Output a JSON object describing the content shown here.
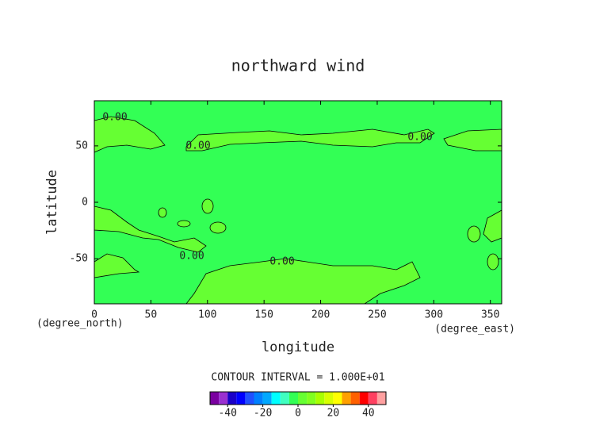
{
  "chart_data": {
    "type": "contour",
    "title": "northward wind",
    "xlabel": "longitude",
    "ylabel": "latitude",
    "x_unit": "(degree_east)",
    "y_unit": "(degree_north)",
    "xlim": [
      0,
      360
    ],
    "ylim": [
      -90,
      90
    ],
    "xticks": [
      0,
      50,
      100,
      150,
      200,
      250,
      300,
      350
    ],
    "yticks": [
      -50,
      0,
      50
    ],
    "contour_labels": [
      "0.00",
      "0.00",
      "0.00",
      "0.00",
      "0.00"
    ],
    "contour_interval_label": "CONTOUR INTERVAL = 1.000E+01",
    "colorbar": {
      "lim": [
        -50,
        50
      ],
      "ticks": [
        -40,
        -20,
        0,
        20,
        40
      ],
      "colors": [
        "#7a00a0",
        "#9a30d0",
        "#1a00c8",
        "#0000ff",
        "#2050ff",
        "#0080ff",
        "#00a8ff",
        "#00ffff",
        "#40ffc0",
        "#33ff55",
        "#66ff33",
        "#80ff20",
        "#a8ff00",
        "#d8ff00",
        "#ffff00",
        "#ffa000",
        "#ff6000",
        "#ff0000",
        "#ff4060",
        "#ffa0a0"
      ]
    }
  }
}
